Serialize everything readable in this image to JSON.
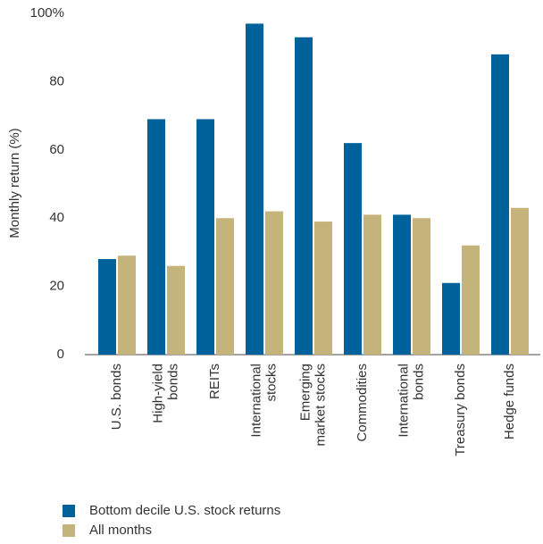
{
  "chart_data": {
    "type": "bar",
    "y_label": "Monthly return (%)",
    "categories": [
      [
        "U.S. bonds"
      ],
      [
        "High-yield",
        "bonds"
      ],
      [
        "REITs"
      ],
      [
        "International",
        "stocks"
      ],
      [
        "Emerging",
        "market stocks"
      ],
      [
        "Commodities"
      ],
      [
        "International",
        "bonds"
      ],
      [
        "Treasury bonds"
      ],
      [
        "Hedge funds"
      ]
    ],
    "series": [
      {
        "name": "Bottom decile U.S. stock returns",
        "color": "#00629b",
        "values": [
          28,
          69,
          69,
          97,
          93,
          62,
          41,
          21,
          88
        ]
      },
      {
        "name": "All months",
        "color": "#c4b47c",
        "values": [
          29,
          26,
          40,
          42,
          39,
          41,
          40,
          32,
          43
        ]
      }
    ],
    "ylim": [
      0,
      100
    ],
    "yticks": [
      0,
      20,
      40,
      60,
      80,
      {
        "value": 100,
        "label": "100%"
      }
    ],
    "grid": false
  }
}
